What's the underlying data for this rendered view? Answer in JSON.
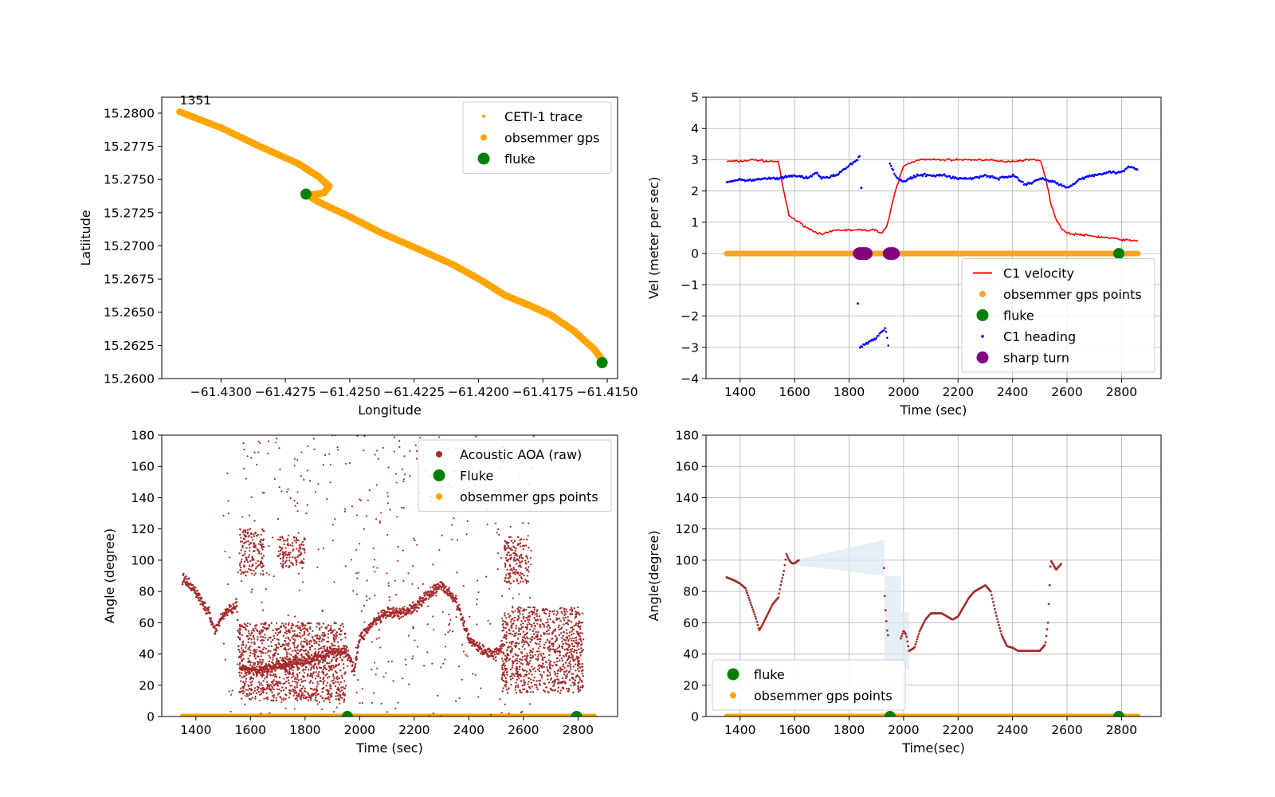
{
  "chart_data": [
    {
      "type": "scatter",
      "panel": "top-left",
      "xlabel": "Longitude",
      "ylabel": "Latiitude",
      "xlim": [
        -61.4323,
        -61.4146
      ],
      "ylim": [
        15.26,
        15.2812
      ],
      "xticks": [
        -61.43,
        -61.4275,
        -61.425,
        -61.4225,
        -61.42,
        -61.4175,
        -61.415
      ],
      "xtick_labels": [
        "−61.4300",
        "−61.4275",
        "−61.4250",
        "−61.4225",
        "−61.4200",
        "−61.4175",
        "−61.4150"
      ],
      "yticks": [
        15.26,
        15.2625,
        15.265,
        15.2675,
        15.27,
        15.2725,
        15.275,
        15.2775,
        15.28
      ],
      "ytick_labels": [
        "15.2600",
        "15.2625",
        "15.2650",
        "15.2675",
        "15.2700",
        "15.2725",
        "15.2750",
        "15.2775",
        "15.2800"
      ],
      "grid": false,
      "legend_position": "top-right",
      "annotations": [
        {
          "text": "1351",
          "x": -61.4316,
          "y": 15.2803
        }
      ],
      "series": [
        {
          "name": "CETI-1 trace",
          "kind": "points",
          "color": "#ffa500",
          "points": [
            [
              -61.4316,
              15.2801
            ],
            [
              -61.43,
              15.2789
            ],
            [
              -61.4285,
              15.2775
            ],
            [
              -61.427,
              15.2762
            ],
            [
              -61.4262,
              15.2752
            ],
            [
              -61.4258,
              15.2745
            ],
            [
              -61.426,
              15.274
            ],
            [
              -61.4266,
              15.2738
            ],
            [
              -61.4262,
              15.2733
            ],
            [
              -61.425,
              15.2722
            ],
            [
              -61.4238,
              15.271
            ],
            [
              -61.4225,
              15.2699
            ],
            [
              -61.421,
              15.2686
            ],
            [
              -61.4198,
              15.2673
            ],
            [
              -61.419,
              15.2663
            ],
            [
              -61.418,
              15.2655
            ],
            [
              -61.4172,
              15.2648
            ],
            [
              -61.4163,
              15.2636
            ],
            [
              -61.4155,
              15.2622
            ],
            [
              -61.4152,
              15.2614
            ]
          ]
        },
        {
          "name": "obsemmer gps",
          "kind": "points",
          "color": "#ffa500",
          "points": []
        },
        {
          "name": "fluke",
          "kind": "points",
          "color": "#008000",
          "points": [
            [
              -61.4267,
              15.2739
            ],
            [
              -61.4152,
              15.2612
            ]
          ]
        }
      ]
    },
    {
      "type": "line",
      "panel": "top-right",
      "xlabel": "Time (sec)",
      "ylabel": "Vel (meter per sec)",
      "xlim": [
        1275,
        2945
      ],
      "ylim": [
        -4,
        5
      ],
      "xticks": [
        1400,
        1600,
        1800,
        2000,
        2200,
        2400,
        2600,
        2800
      ],
      "xtick_labels": [
        "1400",
        "1600",
        "1800",
        "2000",
        "2200",
        "2400",
        "2600",
        "2800"
      ],
      "yticks": [
        -4,
        -3,
        -2,
        -1,
        0,
        1,
        2,
        3,
        4,
        5
      ],
      "ytick_labels": [
        "−4",
        "−3",
        "−2",
        "−1",
        "0",
        "1",
        "2",
        "3",
        "4",
        "5"
      ],
      "grid": true,
      "legend_position": "lower-right",
      "series": [
        {
          "name": "C1 velocity",
          "kind": "line",
          "color": "#ff0000",
          "x": [
            1351,
            1400,
            1450,
            1500,
            1540,
            1560,
            1580,
            1600,
            1650,
            1700,
            1750,
            1800,
            1850,
            1900,
            1920,
            1940,
            1970,
            2000,
            2050,
            2100,
            2150,
            2200,
            2250,
            2300,
            2350,
            2400,
            2450,
            2500,
            2520,
            2540,
            2560,
            2580,
            2600,
            2650,
            2700,
            2750,
            2800,
            2850,
            2860
          ],
          "y": [
            2.95,
            2.95,
            3.0,
            2.95,
            2.95,
            2.0,
            1.2,
            1.1,
            0.8,
            0.6,
            0.75,
            0.75,
            0.75,
            0.75,
            0.65,
            0.9,
            2.0,
            2.8,
            3.0,
            3.0,
            3.0,
            3.0,
            3.0,
            3.0,
            2.95,
            2.95,
            3.0,
            3.0,
            2.5,
            1.6,
            1.1,
            0.8,
            0.65,
            0.6,
            0.55,
            0.5,
            0.45,
            0.4,
            0.45
          ]
        },
        {
          "name": "obsemmer gps points",
          "kind": "band",
          "color": "#f5a623",
          "x": [
            1351,
            2860
          ],
          "y": [
            0,
            0
          ]
        },
        {
          "name": "fluke",
          "kind": "points",
          "color": "#008000",
          "points": [
            [
              2790,
              0
            ]
          ]
        },
        {
          "name": "C1 heading",
          "kind": "line",
          "color": "#0000ff",
          "segments": [
            {
              "x": [
                1351,
                1400,
                1450,
                1500,
                1550,
                1600,
                1650,
                1680,
                1700,
                1750,
                1800,
                1830,
                1840
              ],
              "y": [
                2.3,
                2.35,
                2.35,
                2.4,
                2.4,
                2.5,
                2.4,
                2.6,
                2.4,
                2.5,
                2.8,
                3.0,
                3.1
              ]
            },
            {
              "x": [
                1950,
                1975,
                2000,
                2050,
                2100,
                2150,
                2200,
                2250,
                2300,
                2350,
                2400,
                2450,
                2500,
                2550,
                2600,
                2650,
                2700,
                2750,
                2800,
                2830,
                2860
              ],
              "y": [
                2.9,
                2.4,
                2.3,
                2.5,
                2.5,
                2.5,
                2.4,
                2.4,
                2.5,
                2.4,
                2.5,
                2.2,
                2.4,
                2.3,
                2.1,
                2.4,
                2.5,
                2.6,
                2.6,
                2.8,
                2.7
              ]
            },
            {
              "x": [
                1840,
                1860,
                1880,
                1900,
                1920,
                1935,
                1945
              ],
              "y": [
                -3.0,
                -2.9,
                -2.8,
                -2.7,
                -2.5,
                -2.4,
                -3.0
              ]
            }
          ],
          "stray_points": [
            [
              1832,
              -1.6
            ],
            [
              1845,
              2.1
            ]
          ]
        },
        {
          "name": "sharp turn",
          "kind": "points",
          "color": "#800080",
          "points": [
            [
              1840,
              0
            ],
            [
              1850,
              0
            ],
            [
              1860,
              0
            ],
            [
              1950,
              0
            ],
            [
              1960,
              0
            ]
          ]
        }
      ]
    },
    {
      "type": "scatter",
      "panel": "bottom-left",
      "xlabel": "Time (sec)",
      "ylabel": "Angle (degree)",
      "xlim": [
        1275,
        2945
      ],
      "ylim": [
        0,
        180
      ],
      "xticks": [
        1400,
        1600,
        1800,
        2000,
        2200,
        2400,
        2600,
        2800
      ],
      "xtick_labels": [
        "1400",
        "1600",
        "1800",
        "2000",
        "2200",
        "2400",
        "2600",
        "2800"
      ],
      "yticks": [
        0,
        20,
        40,
        60,
        80,
        100,
        120,
        140,
        160,
        180
      ],
      "ytick_labels": [
        "0",
        "20",
        "40",
        "60",
        "80",
        "100",
        "120",
        "140",
        "160",
        "180"
      ],
      "grid": false,
      "legend_position": "top-right",
      "series": [
        {
          "name": "Acoustic AOA (raw)",
          "kind": "points",
          "color": "#a52a2a",
          "trend": {
            "x": [
              1351,
              1400,
              1450,
              1470,
              1500,
              1550,
              1560,
              1600,
              1650,
              1700,
              1750,
              1800,
              1850,
              1900,
              1950,
              1980,
              2000,
              2050,
              2100,
              2150,
              2200,
              2250,
              2300,
              2350,
              2400,
              2450,
              2500,
              2520
            ],
            "y": [
              88,
              80,
              65,
              55,
              65,
              72,
              30,
              30,
              30,
              32,
              34,
              35,
              38,
              42,
              42,
              30,
              50,
              60,
              66,
              66,
              70,
              78,
              84,
              75,
              50,
              42,
              40,
              45
            ]
          },
          "clusters": [
            {
              "x": [
                1560,
                1950
              ],
              "y": [
                10,
                60
              ]
            },
            {
              "x": [
                1560,
                1650
              ],
              "y": [
                90,
                120
              ]
            },
            {
              "x": [
                1700,
                1800
              ],
              "y": [
                95,
                115
              ]
            },
            {
              "x": [
                2520,
                2820
              ],
              "y": [
                15,
                70
              ]
            },
            {
              "x": [
                2530,
                2620
              ],
              "y": [
                85,
                115
              ]
            }
          ],
          "scatter_range": {
            "x": [
              1500,
              2650
            ],
            "y": [
              0,
              180
            ]
          }
        },
        {
          "name": "Fluke",
          "kind": "points",
          "color": "#008000",
          "points": [
            [
              1955,
              0
            ],
            [
              2795,
              0
            ]
          ]
        },
        {
          "name": "obsemmer gps points",
          "kind": "band",
          "color": "#ffa500",
          "x": [
            1351,
            2860
          ],
          "y": [
            0,
            0
          ]
        }
      ]
    },
    {
      "type": "line",
      "panel": "bottom-right",
      "xlabel": "Time(sec)",
      "ylabel": "Angle(degree)",
      "xlim": [
        1275,
        2945
      ],
      "ylim": [
        0,
        180
      ],
      "xticks": [
        1400,
        1600,
        1800,
        2000,
        2200,
        2400,
        2600,
        2800
      ],
      "xtick_labels": [
        "1400",
        "1600",
        "1800",
        "2000",
        "2200",
        "2400",
        "2600",
        "2800"
      ],
      "yticks": [
        0,
        20,
        40,
        60,
        80,
        100,
        120,
        140,
        160,
        180
      ],
      "ytick_labels": [
        "0",
        "20",
        "40",
        "60",
        "80",
        "100",
        "120",
        "140",
        "160",
        "180"
      ],
      "grid": true,
      "legend_position": "lower-left",
      "series": [
        {
          "name": "",
          "kind": "dotted-line",
          "color": "#a52a2a",
          "segments": [
            {
              "x": [
                1351,
                1380,
                1400,
                1420,
                1440,
                1460,
                1470,
                1480,
                1500,
                1520,
                1540,
                1550,
                1560,
                1570,
                1580,
                1590,
                1600,
                1615
              ],
              "y": [
                89,
                87,
                85,
                82,
                72,
                62,
                55,
                58,
                65,
                72,
                76,
                85,
                92,
                104,
                100,
                98,
                98,
                100
              ]
            },
            {
              "x": [
                1928,
                1930,
                1935,
                1940,
                1945
              ],
              "y": [
                95,
                80,
                65,
                55,
                50
              ]
            },
            {
              "x": [
                1990,
                2000,
                2010,
                2020,
                2040,
                2060,
                2080,
                2100,
                2120,
                2140,
                2160,
                2180,
                2200,
                2220,
                2240,
                2260,
                2280,
                2300,
                2320,
                2340,
                2360,
                2380,
                2400,
                2420,
                2440,
                2460,
                2480,
                2500,
                2520,
                2530,
                2540,
                2560,
                2580
              ],
              "y": [
                50,
                55,
                52,
                42,
                44,
                55,
                62,
                66,
                66,
                66,
                64,
                62,
                64,
                70,
                76,
                80,
                82,
                84,
                80,
                65,
                52,
                45,
                44,
                42,
                42,
                42,
                42,
                42,
                46,
                60,
                100,
                94,
                98
              ]
            }
          ]
        },
        {
          "name": "",
          "kind": "band",
          "color": "#dbe7f3",
          "polygon": [
            [
              1600,
              100
            ],
            [
              1930,
              113
            ],
            [
              1930,
              30
            ],
            [
              2020,
              30
            ],
            [
              2020,
              67
            ],
            [
              1990,
              67
            ],
            [
              1990,
              90
            ],
            [
              1930,
              90
            ],
            [
              1600,
              97
            ]
          ]
        },
        {
          "name": "fluke",
          "kind": "points",
          "color": "#008000",
          "points": [
            [
              1950,
              0
            ],
            [
              2790,
              0
            ]
          ]
        },
        {
          "name": "obsemmer gps points",
          "kind": "band",
          "color": "#ffa500",
          "x": [
            1351,
            2860
          ],
          "y": [
            0,
            0
          ]
        }
      ]
    }
  ]
}
